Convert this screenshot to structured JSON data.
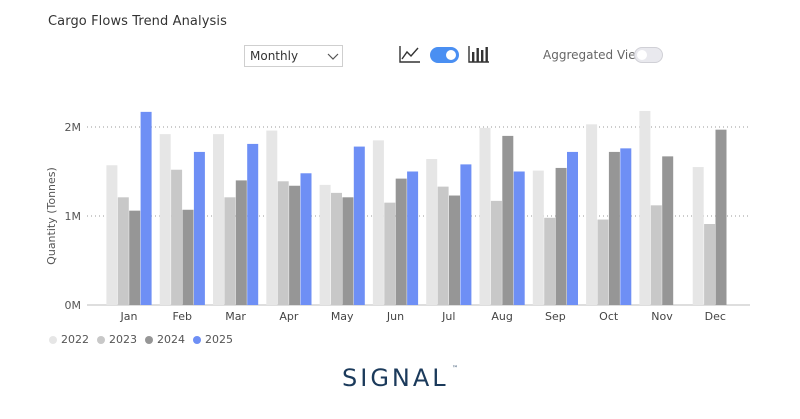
{
  "header": {
    "title": "Cargo Flows Trend Analysis"
  },
  "controls": {
    "period": "Monthly",
    "chart_mode_toggle_on": true,
    "aggregated_view_label": "Aggregated View",
    "aggregated_view_on": false
  },
  "legend": {
    "items": [
      {
        "label": "2022",
        "color": "#e6e6e6"
      },
      {
        "label": "2023",
        "color": "#c8c8c8"
      },
      {
        "label": "2024",
        "color": "#969696"
      },
      {
        "label": "2025",
        "color": "#6e8ff5"
      }
    ]
  },
  "brand": {
    "name": "SIGNAL",
    "mark": "™",
    "color": "#1b3a5b"
  },
  "chart_data": {
    "type": "bar",
    "title": "",
    "xlabel": "",
    "ylabel": "Quantity (Tonnes)",
    "ylim": [
      0,
      2400000
    ],
    "yticks": [
      0,
      1000000,
      2000000
    ],
    "ytick_labels": [
      "0M",
      "1M",
      "2M"
    ],
    "grid": true,
    "legend_position": "bottom-left",
    "categories": [
      "Jan",
      "Feb",
      "Mar",
      "Apr",
      "May",
      "Jun",
      "Jul",
      "Aug",
      "Sep",
      "Oct",
      "Nov",
      "Dec"
    ],
    "series": [
      {
        "name": "2022",
        "color": "#e6e6e6",
        "values": [
          1570000,
          1920000,
          1920000,
          1960000,
          1350000,
          1850000,
          1640000,
          1990000,
          1510000,
          2030000,
          2180000,
          1550000
        ]
      },
      {
        "name": "2023",
        "color": "#c8c8c8",
        "values": [
          1210000,
          1520000,
          1210000,
          1390000,
          1260000,
          1150000,
          1330000,
          1170000,
          980000,
          960000,
          1120000,
          910000
        ]
      },
      {
        "name": "2024",
        "color": "#969696",
        "values": [
          1060000,
          1070000,
          1400000,
          1340000,
          1210000,
          1420000,
          1230000,
          1900000,
          1540000,
          1720000,
          1670000,
          1970000
        ]
      },
      {
        "name": "2025",
        "color": "#6e8ff5",
        "values": [
          2170000,
          1720000,
          1810000,
          1480000,
          1780000,
          1500000,
          1580000,
          1500000,
          1720000,
          1760000,
          null,
          null
        ]
      }
    ]
  }
}
